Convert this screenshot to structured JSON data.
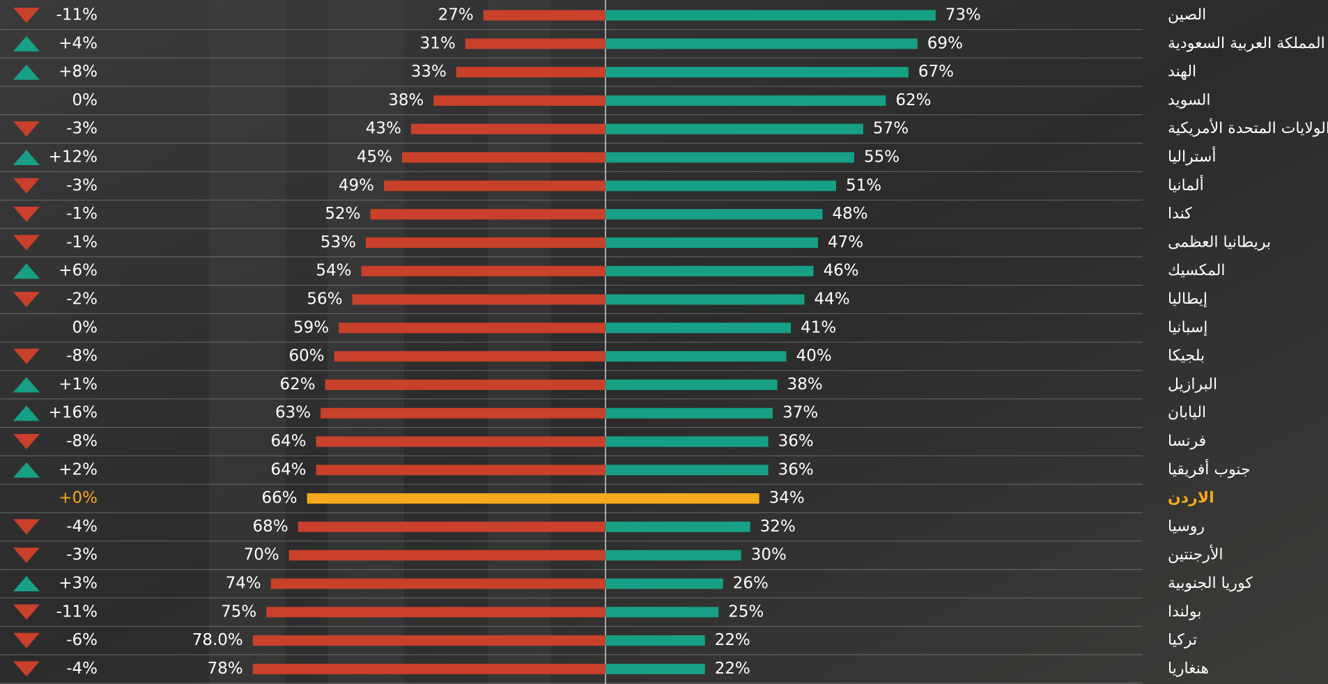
{
  "chart_data": {
    "type": "diverging_bar",
    "categories": [
      "الصين",
      "المملكة العربية السعودية",
      "الهند",
      "السويد",
      "الولايات المتحدة الأمريكية",
      "أستراليا",
      "ألمانيا",
      "كندا",
      "بريطانيا العظمى",
      "المكسيك",
      "إيطاليا",
      "إسبانيا",
      "بلجيكا",
      "البرازيل",
      "اليابان",
      "فرنسا",
      "جنوب أفريقيا",
      "الاردن",
      "روسيا",
      "الأرجنتين",
      "كوريا الجنوبية",
      "بولندا",
      "تركيا",
      "هنغاريا"
    ],
    "series": [
      {
        "color": "#c9402b",
        "side": "left",
        "values": [
          27,
          31,
          33,
          38,
          43,
          45,
          49,
          52,
          53,
          54,
          56,
          59,
          60,
          62,
          63,
          64,
          64,
          66,
          68,
          70,
          74,
          75,
          78.0,
          78
        ],
        "value_labels": [
          "27%",
          "31%",
          "33%",
          "38%",
          "43%",
          "45%",
          "49%",
          "52%",
          "53%",
          "54%",
          "56%",
          "59%",
          "60%",
          "62%",
          "63%",
          "64%",
          "64%",
          "66%",
          "68%",
          "70%",
          "74%",
          "75%",
          "78.0%",
          "78%"
        ]
      },
      {
        "color": "#17a086",
        "side": "right",
        "values": [
          73,
          69,
          67,
          62,
          57,
          55,
          51,
          48,
          47,
          46,
          44,
          41,
          40,
          38,
          37,
          36,
          36,
          34,
          32,
          30,
          26,
          25,
          22,
          22
        ],
        "value_labels": [
          "73%",
          "69%",
          "67%",
          "62%",
          "57%",
          "55%",
          "51%",
          "48%",
          "47%",
          "46%",
          "44%",
          "41%",
          "40%",
          "38%",
          "37%",
          "36%",
          "36%",
          "34%",
          "32%",
          "30%",
          "26%",
          "25%",
          "22%",
          "22%"
        ]
      }
    ],
    "changes": [
      -11,
      4,
      8,
      0,
      -3,
      12,
      -3,
      -1,
      -1,
      6,
      -2,
      0,
      -8,
      1,
      16,
      -8,
      2,
      0,
      -4,
      -3,
      3,
      -11,
      -6,
      -4
    ],
    "change_labels": [
      "-11%",
      "+4%",
      "+8%",
      "0%",
      "-3%",
      "+12%",
      "-3%",
      "-1%",
      "-1%",
      "+6%",
      "-2%",
      "0%",
      "-8%",
      "+1%",
      "+16%",
      "-8%",
      "+2%",
      "+0%",
      "-4%",
      "-3%",
      "+3%",
      "-11%",
      "-6%",
      "-4%"
    ],
    "up_color": "#17a086",
    "down_color": "#c9402b",
    "highlight_category": "الاردن",
    "highlight_color": "#f5a81c",
    "xlim": [
      -100,
      100
    ]
  }
}
